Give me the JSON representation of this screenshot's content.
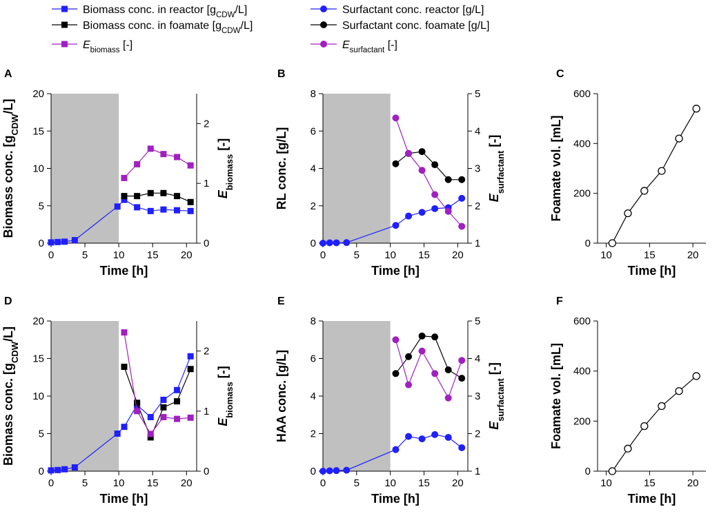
{
  "legend": {
    "left": [
      {
        "series": "biomass_reactor",
        "pre": "Biomass conc. in reactor [g",
        "sub": "CDW",
        "post": "/L]",
        "color": "#1f1fff",
        "marker": "square"
      },
      {
        "series": "biomass_foamate",
        "pre": "Biomass conc. in foamate [g",
        "sub": "CDW",
        "post": "/L]",
        "color": "#000000",
        "marker": "square"
      },
      {
        "series": "e_biomass",
        "pre": "E",
        "sub": "biomass",
        "post": " [-]",
        "color": "#a020c0",
        "marker": "square",
        "italic_pre": true
      }
    ],
    "right": [
      {
        "series": "surf_reactor",
        "pre": "Surfactant conc. reactor [g/L]",
        "sub": "",
        "post": "",
        "color": "#1f1fff",
        "marker": "circle"
      },
      {
        "series": "surf_foamate",
        "pre": "Surfactant conc. foamate [g/L]",
        "sub": "",
        "post": "",
        "color": "#000000",
        "marker": "circle"
      },
      {
        "series": "e_surfactant",
        "pre": "E",
        "sub": "surfactant",
        "post": " [-]",
        "color": "#a020c0",
        "marker": "circle",
        "italic_pre": true
      }
    ]
  },
  "colors": {
    "reactor": "#1f1fff",
    "foamate": "#000000",
    "enrichment": "#a020c0",
    "shade": "#c0c0c0"
  },
  "chart_data": [
    {
      "panel": "A",
      "type": "line",
      "xlabel": "Time [h]",
      "xlim": [
        0,
        21.5
      ],
      "xticks": [
        0,
        5,
        10,
        15,
        20
      ],
      "xticklabels": [
        "0",
        "5",
        "10",
        "15",
        "20"
      ],
      "ylabel": {
        "pre": "Biomass conc. [g",
        "sub": "CDW",
        "post": "/L]"
      },
      "ylim": [
        0,
        20
      ],
      "yticks": [
        0,
        5,
        10,
        15,
        20
      ],
      "y2label": {
        "pre": "E",
        "sub": "biomass",
        "post": " [-]"
      },
      "y2lim": [
        0,
        2.5
      ],
      "y2ticks": [
        0,
        1,
        2
      ],
      "shade": [
        0,
        10
      ],
      "series": [
        {
          "name": "Biomass conc. in reactor",
          "axis": "left",
          "marker": "square",
          "color": "#1f1fff",
          "x": [
            0,
            1,
            2,
            3.5,
            9.8,
            10.8,
            12.7,
            14.7,
            16.6,
            18.6,
            20.6
          ],
          "y": [
            0.1,
            0.15,
            0.2,
            0.4,
            4.9,
            5.8,
            4.8,
            4.3,
            4.5,
            4.4,
            4.3
          ]
        },
        {
          "name": "Biomass conc. in foamate",
          "axis": "left",
          "marker": "square",
          "color": "#000000",
          "x": [
            10.8,
            12.7,
            14.7,
            16.6,
            18.6,
            20.6
          ],
          "y": [
            6.3,
            6.3,
            6.7,
            6.7,
            6.3,
            5.5
          ]
        },
        {
          "name": "E biomass",
          "axis": "right",
          "marker": "square",
          "color": "#a020c0",
          "x": [
            10.8,
            12.7,
            14.7,
            16.6,
            18.6,
            20.6
          ],
          "y": [
            1.09,
            1.32,
            1.58,
            1.49,
            1.44,
            1.3
          ]
        }
      ]
    },
    {
      "panel": "B",
      "type": "line",
      "xlabel": "Time [h]",
      "xlim": [
        0,
        21.5
      ],
      "xticks": [
        0,
        5,
        10,
        15,
        20
      ],
      "xticklabels": [
        "0",
        "5",
        "10",
        "15",
        "20"
      ],
      "ylabel": {
        "pre": "RL conc. [g/L]",
        "sub": "",
        "post": ""
      },
      "ylim": [
        0,
        8
      ],
      "yticks": [
        0,
        2,
        4,
        6,
        8
      ],
      "y2label": {
        "pre": "E",
        "sub": "surfactant",
        "post": " [-]"
      },
      "y2lim": [
        1,
        5
      ],
      "y2ticks": [
        1,
        2,
        3,
        4,
        5
      ],
      "shade": [
        0,
        10
      ],
      "series": [
        {
          "name": "Surfactant conc. reactor",
          "axis": "left",
          "marker": "circle",
          "color": "#1f1fff",
          "x": [
            0,
            1,
            2,
            3.5,
            10.8,
            12.7,
            14.7,
            16.6,
            18.6,
            20.6
          ],
          "y": [
            0.0,
            0.02,
            0.02,
            0.03,
            0.95,
            1.45,
            1.65,
            1.85,
            1.9,
            2.4
          ]
        },
        {
          "name": "Surfactant conc. foamate",
          "axis": "left",
          "marker": "circle",
          "color": "#000000",
          "x": [
            10.8,
            12.7,
            14.7,
            16.6,
            18.6,
            20.6
          ],
          "y": [
            4.25,
            4.8,
            4.9,
            4.2,
            3.4,
            3.4
          ]
        },
        {
          "name": "E surfactant",
          "axis": "right",
          "marker": "circle",
          "color": "#a020c0",
          "x": [
            10.8,
            12.7,
            14.7,
            16.6,
            18.6,
            20.6
          ],
          "y": [
            4.35,
            3.4,
            2.95,
            2.3,
            1.85,
            1.45
          ]
        }
      ]
    },
    {
      "panel": "C",
      "type": "line",
      "xlabel": "Time [h]",
      "xlim": [
        9,
        21.5
      ],
      "xticks": [
        10,
        15,
        20
      ],
      "xticklabels": [
        "10",
        "15",
        "20"
      ],
      "ylabel": {
        "pre": "Foamate vol. [mL]",
        "sub": "",
        "post": ""
      },
      "ylim": [
        0,
        600
      ],
      "yticks": [
        0,
        200,
        400,
        600
      ],
      "series": [
        {
          "name": "Foamate vol.",
          "axis": "left",
          "marker": "open-circle",
          "color": "#000000",
          "x": [
            10.7,
            12.5,
            14.4,
            16.4,
            18.4,
            20.4
          ],
          "y": [
            0,
            120,
            210,
            290,
            420,
            540
          ]
        }
      ]
    },
    {
      "panel": "D",
      "type": "line",
      "xlabel": "Time [h]",
      "xlim": [
        0,
        21.5
      ],
      "xticks": [
        0,
        5,
        10,
        15,
        20
      ],
      "xticklabels": [
        "0",
        "5",
        "10",
        "15",
        "20"
      ],
      "ylabel": {
        "pre": "Biomass conc. [g",
        "sub": "CDW",
        "post": "/L]"
      },
      "ylim": [
        0,
        20
      ],
      "yticks": [
        0,
        5,
        10,
        15,
        20
      ],
      "y2label": {
        "pre": "E",
        "sub": "biomass",
        "post": " [-]"
      },
      "y2lim": [
        0,
        2.5
      ],
      "y2ticks": [
        0,
        1,
        2
      ],
      "shade": [
        0,
        10
      ],
      "series": [
        {
          "name": "Biomass conc. in reactor",
          "axis": "left",
          "marker": "square",
          "color": "#1f1fff",
          "x": [
            0,
            1,
            2,
            3.5,
            9.8,
            10.8,
            12.7,
            14.7,
            16.6,
            18.6,
            20.6
          ],
          "y": [
            0.1,
            0.15,
            0.25,
            0.5,
            5.0,
            5.9,
            8.8,
            7.2,
            9.5,
            10.8,
            15.3
          ]
        },
        {
          "name": "Biomass conc. in foamate",
          "axis": "left",
          "marker": "square",
          "color": "#000000",
          "x": [
            10.8,
            12.7,
            14.7,
            16.6,
            18.6,
            20.6
          ],
          "y": [
            13.9,
            9.1,
            4.5,
            8.5,
            9.3,
            13.6
          ]
        },
        {
          "name": "E biomass",
          "axis": "right",
          "marker": "square",
          "color": "#a020c0",
          "x": [
            10.8,
            12.7,
            14.7,
            16.6,
            18.6,
            20.6
          ],
          "y": [
            2.31,
            1.0,
            0.62,
            0.9,
            0.87,
            0.89
          ]
        }
      ]
    },
    {
      "panel": "E",
      "type": "line",
      "xlabel": "Time [h]",
      "xlim": [
        0,
        21.5
      ],
      "xticks": [
        0,
        5,
        10,
        15,
        20
      ],
      "xticklabels": [
        "0",
        "5",
        "10",
        "15",
        "20"
      ],
      "ylabel": {
        "pre": "HAA conc. [g/L]",
        "sub": "",
        "post": ""
      },
      "ylim": [
        0,
        8
      ],
      "yticks": [
        0,
        2,
        4,
        6,
        8
      ],
      "y2label": {
        "pre": "E",
        "sub": "surfactant",
        "post": " [-]"
      },
      "y2lim": [
        1,
        5
      ],
      "y2ticks": [
        1,
        2,
        3,
        4,
        5
      ],
      "shade": [
        0,
        10
      ],
      "series": [
        {
          "name": "Surfactant conc. reactor",
          "axis": "left",
          "marker": "circle",
          "color": "#1f1fff",
          "x": [
            0,
            1,
            2,
            3.5,
            10.8,
            12.7,
            14.7,
            16.6,
            18.6,
            20.6
          ],
          "y": [
            0.0,
            0.02,
            0.03,
            0.05,
            1.15,
            1.85,
            1.72,
            1.95,
            1.8,
            1.25
          ]
        },
        {
          "name": "Surfactant conc. foamate",
          "axis": "left",
          "marker": "circle",
          "color": "#000000",
          "x": [
            10.8,
            12.7,
            14.7,
            16.6,
            18.6,
            20.6
          ],
          "y": [
            5.2,
            6.1,
            7.2,
            7.15,
            5.4,
            4.95
          ]
        },
        {
          "name": "E surfactant",
          "axis": "right",
          "marker": "circle",
          "color": "#a020c0",
          "x": [
            10.8,
            12.7,
            14.7,
            16.6,
            18.6,
            20.6
          ],
          "y": [
            4.5,
            3.3,
            4.2,
            3.6,
            2.95,
            3.95
          ]
        }
      ]
    },
    {
      "panel": "F",
      "type": "line",
      "xlabel": "Time [h]",
      "xlim": [
        9,
        21.5
      ],
      "xticks": [
        10,
        15,
        20
      ],
      "xticklabels": [
        "10",
        "15",
        "20"
      ],
      "ylabel": {
        "pre": "Foamate vol. [mL]",
        "sub": "",
        "post": ""
      },
      "ylim": [
        0,
        600
      ],
      "yticks": [
        0,
        200,
        400,
        600
      ],
      "series": [
        {
          "name": "Foamate vol.",
          "axis": "left",
          "marker": "open-circle",
          "color": "#000000",
          "x": [
            10.7,
            12.5,
            14.4,
            16.4,
            18.4,
            20.4
          ],
          "y": [
            0,
            90,
            180,
            260,
            320,
            380
          ]
        }
      ]
    }
  ]
}
